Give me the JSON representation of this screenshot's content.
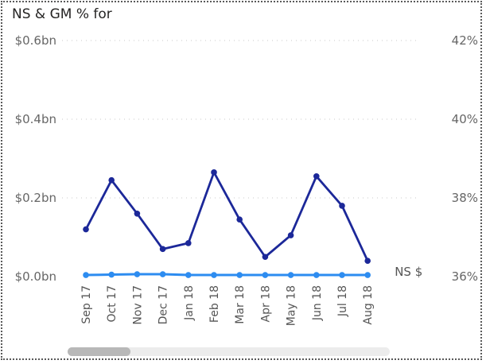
{
  "chart_data": {
    "type": "line",
    "title": "NS & GM % for",
    "categories": [
      "Sep 17",
      "Oct 17",
      "Nov 17",
      "Dec 17",
      "Jan 18",
      "Feb 18",
      "Mar 18",
      "Apr 18",
      "May 18",
      "Jun 18",
      "Jul 18",
      "Aug 18"
    ],
    "y_left": {
      "ticks": [
        "$0.0bn",
        "$0.2bn",
        "$0.4bn",
        "$0.6bn"
      ],
      "tick_values": [
        0,
        0.2,
        0.4,
        0.6
      ],
      "ylim": [
        0,
        0.6
      ]
    },
    "y_right": {
      "ticks": [
        "36%",
        "38%",
        "40%",
        "42%"
      ],
      "tick_values": [
        36,
        38,
        40,
        42
      ],
      "ylim": [
        36,
        42
      ]
    },
    "series": [
      {
        "axis": "right",
        "color": "#1c2899",
        "values": [
          37.2,
          38.45,
          37.6,
          36.7,
          36.85,
          38.65,
          37.45,
          36.5,
          37.05,
          38.55,
          37.8,
          36.4
        ]
      },
      {
        "name": "NS $",
        "axis": "left",
        "color": "#2d8cf0",
        "values": [
          0.004,
          0.005,
          0.006,
          0.006,
          0.004,
          0.004,
          0.004,
          0.004,
          0.004,
          0.004,
          0.004,
          0.004
        ]
      }
    ],
    "grid": true,
    "scrollbar": true
  }
}
